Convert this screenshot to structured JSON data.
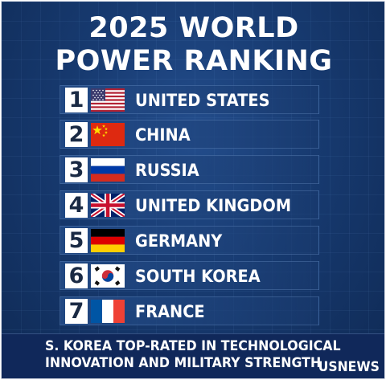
{
  "title": {
    "line1": "2025 WORLD",
    "line2": "POWER RANKING"
  },
  "rankings": [
    {
      "rank": "1",
      "country": "UNITED STATES",
      "flag_icon": "us-flag-icon"
    },
    {
      "rank": "2",
      "country": "CHINA",
      "flag_icon": "china-flag-icon"
    },
    {
      "rank": "3",
      "country": "RUSSIA",
      "flag_icon": "russia-flag-icon"
    },
    {
      "rank": "4",
      "country": "UNITED KINGDOM",
      "flag_icon": "uk-flag-icon"
    },
    {
      "rank": "5",
      "country": "GERMANY",
      "flag_icon": "germany-flag-icon"
    },
    {
      "rank": "6",
      "country": "SOUTH KOREA",
      "flag_icon": "south-korea-flag-icon"
    },
    {
      "rank": "7",
      "country": "FRANCE",
      "flag_icon": "france-flag-icon"
    }
  ],
  "footer": {
    "line1": "S. KOREA TOP-RATED IN TECHNOLOGICAL",
    "line2": "INNOVATION AND MILITARY STRENGTH",
    "brand": "USNEWS"
  },
  "colors": {
    "background": "#173a70",
    "footer_background": "#10285a",
    "text": "#ffffff",
    "rank_box": "#ffffff"
  }
}
